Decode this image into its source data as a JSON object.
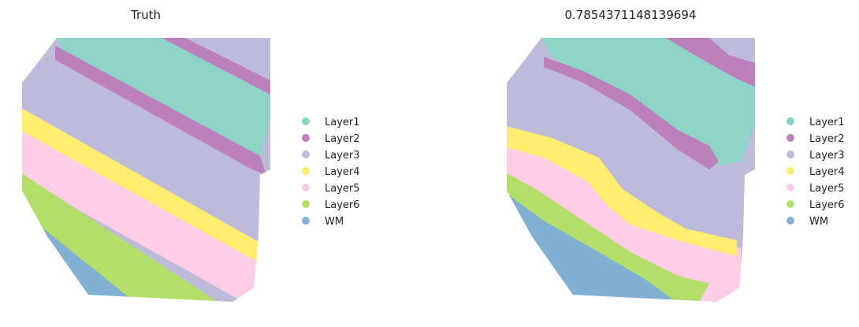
{
  "panels": [
    {
      "title": "Truth"
    },
    {
      "title": "0.7854371148139694"
    }
  ],
  "layers": [
    {
      "name": "Layer1",
      "color": "#8dd3c7"
    },
    {
      "name": "Layer2",
      "color": "#bc80bd"
    },
    {
      "name": "Layer3",
      "color": "#bebada"
    },
    {
      "name": "Layer4",
      "color": "#ffed6f"
    },
    {
      "name": "Layer5",
      "color": "#fccde5"
    },
    {
      "name": "Layer6",
      "color": "#b3de69"
    },
    {
      "name": "WM",
      "color": "#80b1d3"
    }
  ]
}
